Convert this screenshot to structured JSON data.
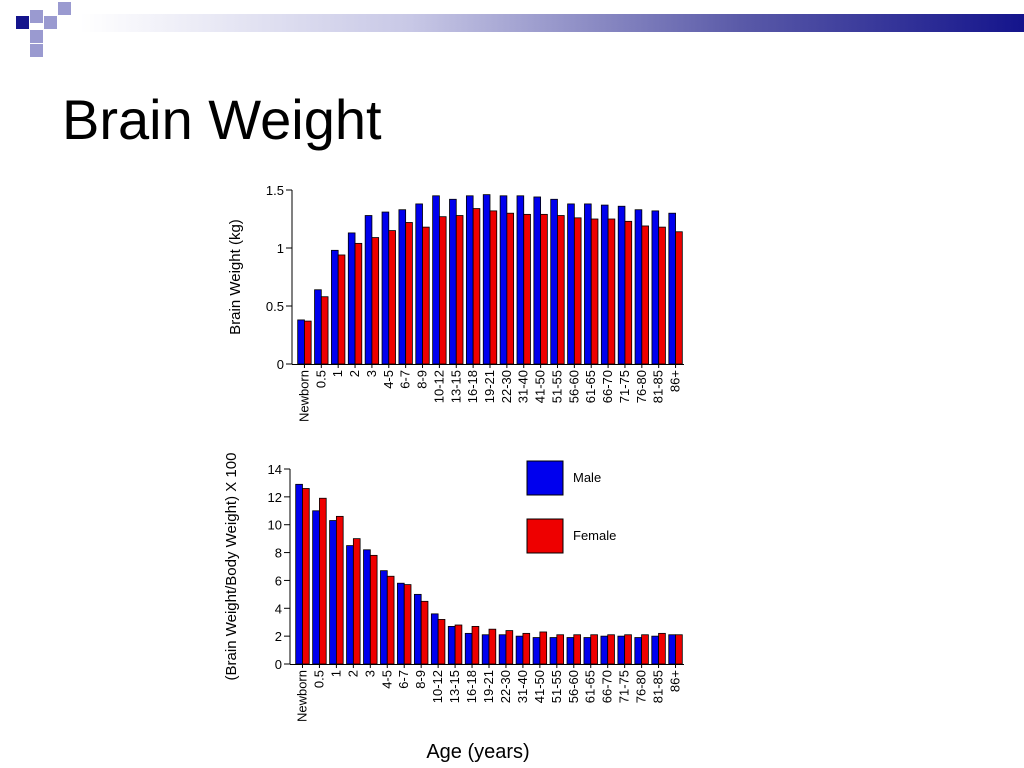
{
  "slide": {
    "title": "Brain Weight"
  },
  "colors": {
    "male": "#0000ee",
    "female": "#ee0000",
    "header_dark": "#14148c",
    "header_light": "#9a9ad0"
  },
  "legend": {
    "male_label": "Male",
    "female_label": "Female"
  },
  "shared_xlabel": "Age (years)",
  "chart_data": [
    {
      "type": "bar",
      "title": "",
      "xlabel": "",
      "ylabel": "Brain Weight (kg)",
      "ylim": [
        0,
        1.5
      ],
      "yticks": [
        "0",
        "0.5",
        "1",
        "1.5"
      ],
      "categories": [
        "Newborn",
        "0.5",
        "1",
        "2",
        "3",
        "4-5",
        "6-7",
        "8-9",
        "10-12",
        "13-15",
        "16-18",
        "19-21",
        "22-30",
        "31-40",
        "41-50",
        "51-55",
        "56-60",
        "61-65",
        "66-70",
        "71-75",
        "76-80",
        "81-85",
        "86+"
      ],
      "series": [
        {
          "name": "Male",
          "values": [
            0.38,
            0.64,
            0.98,
            1.13,
            1.28,
            1.31,
            1.33,
            1.38,
            1.45,
            1.42,
            1.45,
            1.46,
            1.45,
            1.45,
            1.44,
            1.42,
            1.38,
            1.38,
            1.37,
            1.36,
            1.33,
            1.32,
            1.3
          ]
        },
        {
          "name": "Female",
          "values": [
            0.37,
            0.58,
            0.94,
            1.04,
            1.09,
            1.15,
            1.22,
            1.18,
            1.27,
            1.28,
            1.34,
            1.32,
            1.3,
            1.29,
            1.29,
            1.28,
            1.26,
            1.25,
            1.25,
            1.23,
            1.19,
            1.18,
            1.14
          ]
        }
      ]
    },
    {
      "type": "bar",
      "title": "",
      "xlabel": "Age (years)",
      "ylabel": "(Brain Weight/Body Weight) X 100",
      "ylim": [
        0,
        14
      ],
      "yticks": [
        "0",
        "2",
        "4",
        "6",
        "8",
        "10",
        "12",
        "14"
      ],
      "legend_position": "top-right",
      "categories": [
        "Newborn",
        "0.5",
        "1",
        "2",
        "3",
        "4-5",
        "6-7",
        "8-9",
        "10-12",
        "13-15",
        "16-18",
        "19-21",
        "22-30",
        "31-40",
        "41-50",
        "51-55",
        "56-60",
        "61-65",
        "66-70",
        "71-75",
        "76-80",
        "81-85",
        "86+"
      ],
      "series": [
        {
          "name": "Male",
          "values": [
            12.9,
            11.0,
            10.3,
            8.5,
            8.2,
            6.7,
            5.8,
            5.0,
            3.6,
            2.7,
            2.2,
            2.1,
            2.1,
            2.0,
            1.9,
            1.9,
            1.9,
            1.9,
            2.0,
            2.0,
            1.9,
            2.0,
            2.1
          ]
        },
        {
          "name": "Female",
          "values": [
            12.6,
            11.9,
            10.6,
            9.0,
            7.8,
            6.3,
            5.7,
            4.5,
            3.2,
            2.8,
            2.7,
            2.5,
            2.4,
            2.2,
            2.3,
            2.1,
            2.1,
            2.1,
            2.1,
            2.1,
            2.1,
            2.2,
            2.1
          ]
        }
      ]
    }
  ]
}
